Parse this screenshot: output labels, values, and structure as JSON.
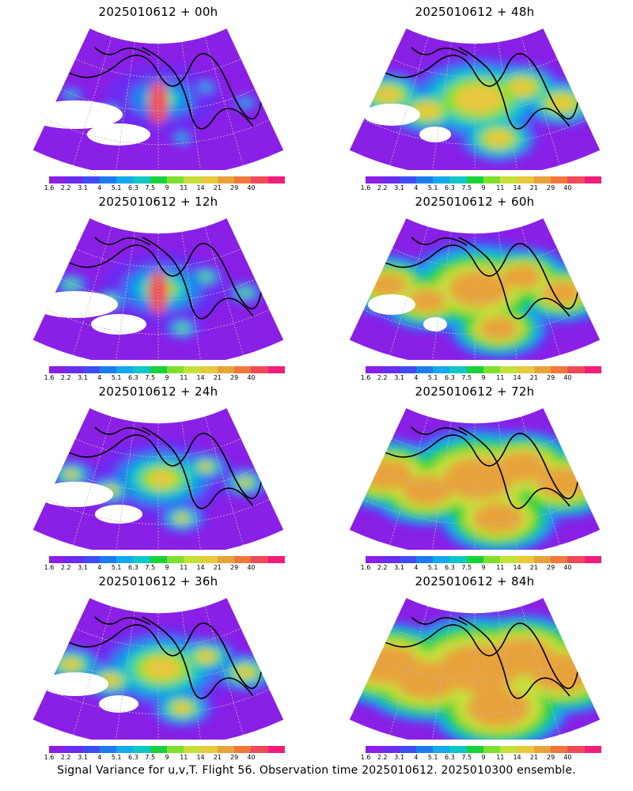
{
  "panels": [
    {
      "title": "2025010612 + 00h",
      "lead_hours": 0
    },
    {
      "title": "2025010612 + 48h",
      "lead_hours": 48
    },
    {
      "title": "2025010612 + 12h",
      "lead_hours": 12
    },
    {
      "title": "2025010612 + 60h",
      "lead_hours": 60
    },
    {
      "title": "2025010612 + 24h",
      "lead_hours": 24
    },
    {
      "title": "2025010612 + 72h",
      "lead_hours": 72
    },
    {
      "title": "2025010612 + 36h",
      "lead_hours": 36
    },
    {
      "title": "2025010612 + 84h",
      "lead_hours": 84
    }
  ],
  "colorbar": {
    "labels": [
      "1.6",
      "2.2",
      "3.1",
      "4",
      "5.1",
      "6.3",
      "7.5",
      "9",
      "11",
      "14",
      "21",
      "29",
      "40"
    ],
    "colors": [
      "#8a1fe6",
      "#6a2cf0",
      "#3f4cf5",
      "#1e7cf2",
      "#14a8ec",
      "#10c6c8",
      "#19d23a",
      "#7ee02e",
      "#c6e03a",
      "#e8c83c",
      "#e8a23a",
      "#f0783a",
      "#f04a5a",
      "#f01e7a"
    ]
  },
  "footer": "Signal Variance for u,v,T. Flight 56. Observation time 2025010612. 2025010300 ensemble."
}
